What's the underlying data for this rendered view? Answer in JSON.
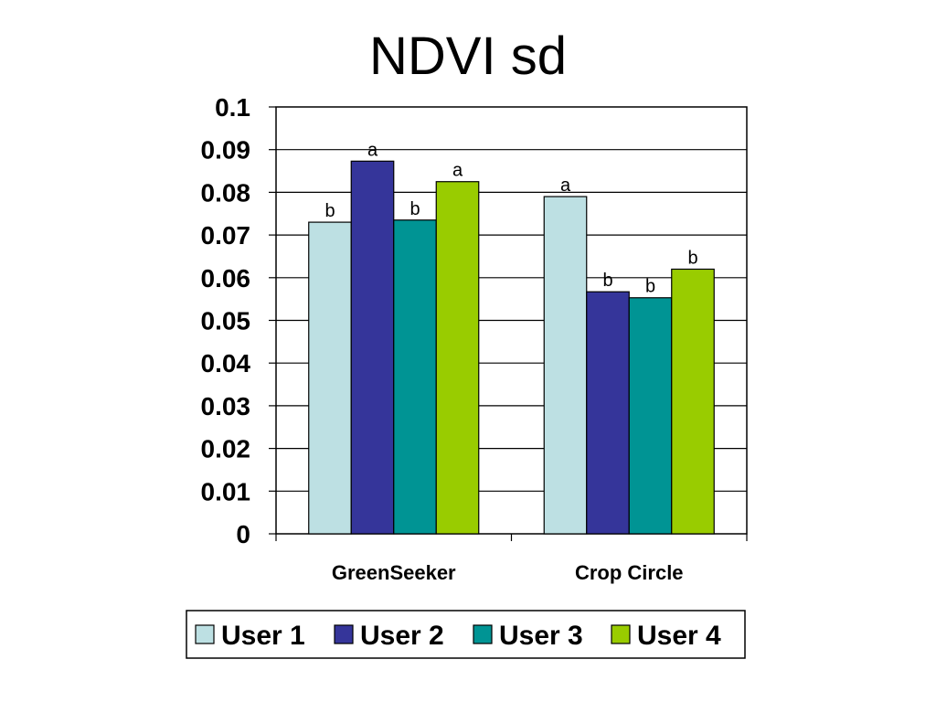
{
  "chart_data": {
    "type": "bar",
    "title": "NDVI sd",
    "categories": [
      "GreenSeeker",
      "Crop Circle"
    ],
    "series": [
      {
        "name": "User 1",
        "color": "#BDE0E3",
        "values": [
          0.073,
          0.079
        ],
        "labels": [
          "b",
          "a"
        ]
      },
      {
        "name": "User 2",
        "color": "#35359A",
        "values": [
          0.0873,
          0.0567
        ],
        "labels": [
          "a",
          "b"
        ]
      },
      {
        "name": "User 3",
        "color": "#009494",
        "values": [
          0.0735,
          0.0553
        ],
        "labels": [
          "b",
          "b"
        ]
      },
      {
        "name": "User 4",
        "color": "#99CC00",
        "values": [
          0.0825,
          0.062
        ],
        "labels": [
          "a",
          "b"
        ]
      }
    ],
    "ylim": [
      0,
      0.1
    ],
    "yticks": [
      "0",
      "0.01",
      "0.02",
      "0.03",
      "0.04",
      "0.05",
      "0.06",
      "0.07",
      "0.08",
      "0.09",
      "0.1"
    ],
    "xlabel": "",
    "ylabel": "",
    "grid": true,
    "legend_position": "bottom"
  }
}
